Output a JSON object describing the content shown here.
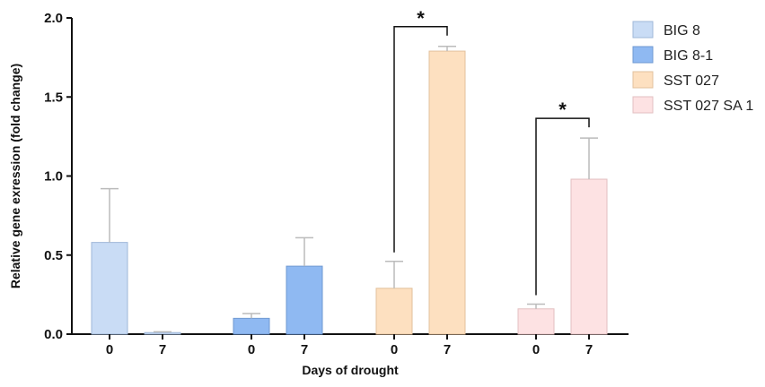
{
  "chart_data": {
    "type": "bar",
    "title": "",
    "xlabel": "Days of drought",
    "ylabel": "Relative gene exression (fold change)",
    "ylim": [
      0,
      2.0
    ],
    "yticks": [
      "0.0",
      "0.5",
      "1.0",
      "1.5",
      "2.0"
    ],
    "yticks_values": [
      0,
      0.5,
      1.0,
      1.5,
      2.0
    ],
    "grid": false,
    "legend_position": "top-right",
    "groups": [
      "BIG 8",
      "BIG 8-1",
      "SST 027",
      "SST 027 SA 1"
    ],
    "categories": [
      "0",
      "7"
    ],
    "series": [
      {
        "name": "BIG 8",
        "color": "#c9dcf5",
        "edge": "#9fb7d8",
        "values": [
          0.58,
          0.01
        ],
        "errors": [
          0.34,
          0.005
        ]
      },
      {
        "name": "BIG 8-1",
        "color": "#8fb9f2",
        "edge": "#6f99d2",
        "values": [
          0.1,
          0.43
        ],
        "errors": [
          0.03,
          0.18
        ]
      },
      {
        "name": "SST 027",
        "color": "#fde0c0",
        "edge": "#e2c09c",
        "values": [
          0.29,
          1.79
        ],
        "errors": [
          0.17,
          0.03
        ]
      },
      {
        "name": "SST 027 SA 1",
        "color": "#fde2e3",
        "edge": "#e2bfc0",
        "values": [
          0.16,
          0.98
        ],
        "errors": [
          0.03,
          0.26
        ]
      }
    ],
    "significance": [
      {
        "series": "SST 027",
        "between": [
          "0",
          "7"
        ],
        "label": "*"
      },
      {
        "series": "SST 027 SA 1",
        "between": [
          "0",
          "7"
        ],
        "label": "*"
      }
    ]
  }
}
